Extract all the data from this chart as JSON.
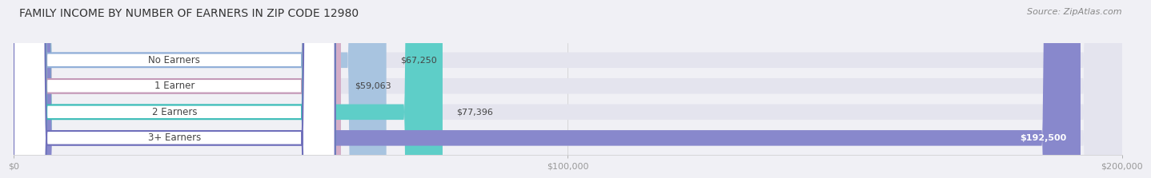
{
  "title": "FAMILY INCOME BY NUMBER OF EARNERS IN ZIP CODE 12980",
  "source": "Source: ZipAtlas.com",
  "categories": [
    "No Earners",
    "1 Earner",
    "2 Earners",
    "3+ Earners"
  ],
  "values": [
    67250,
    59063,
    77396,
    192500
  ],
  "value_labels": [
    "$67,250",
    "$59,063",
    "$77,396",
    "$192,500"
  ],
  "bar_colors": [
    "#a8c4e0",
    "#d4aec8",
    "#5ecec8",
    "#8888cc"
  ],
  "bar_edge_colors": [
    "#90aed8",
    "#c49ab8",
    "#3dbdb8",
    "#7070bb"
  ],
  "xlim": [
    0,
    200000
  ],
  "xtick_values": [
    0,
    100000,
    200000
  ],
  "xtick_labels": [
    "$0",
    "$100,000",
    "$200,000"
  ],
  "background_color": "#f0f0f5",
  "bar_bg_color": "#e4e4ee",
  "title_fontsize": 10,
  "source_fontsize": 8,
  "label_fontsize": 8.5,
  "value_fontsize": 8,
  "tick_fontsize": 8
}
